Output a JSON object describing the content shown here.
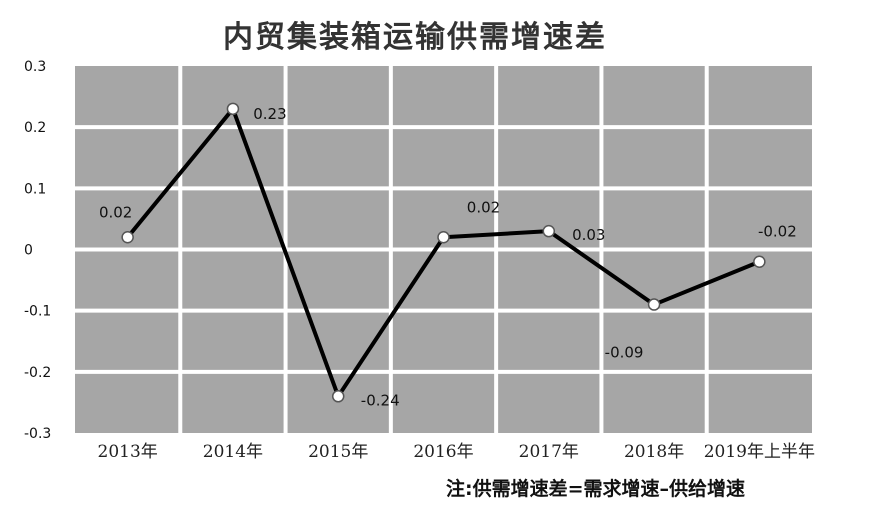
{
  "chart_data": {
    "type": "line",
    "title": "内贸集装箱运输供需增速差",
    "categories": [
      "2013年",
      "2014年",
      "2015年",
      "2016年",
      "2017年",
      "2018年",
      "2019年上半年"
    ],
    "series": [
      {
        "values": [
          0.02,
          0.23,
          -0.24,
          0.02,
          0.03,
          -0.09,
          -0.02
        ]
      }
    ],
    "data_labels": [
      "0.02",
      "0.23",
      "-0.24",
      "0.02",
      "0.03",
      "-0.09",
      "-0.02"
    ],
    "yticks": [
      "0.3",
      "0.2",
      "0.1",
      "0",
      "-0.1",
      "-0.2",
      "-0.3"
    ],
    "ylim": [
      -0.3,
      0.3
    ],
    "grid": true,
    "legend": "none",
    "note": "注:供需增速差=需求增速–供给增速",
    "colors": {
      "plot_bg": "#a6a6a6",
      "grid": "#ffffff",
      "line": "#000000",
      "marker_fill": "#ffffff"
    }
  }
}
